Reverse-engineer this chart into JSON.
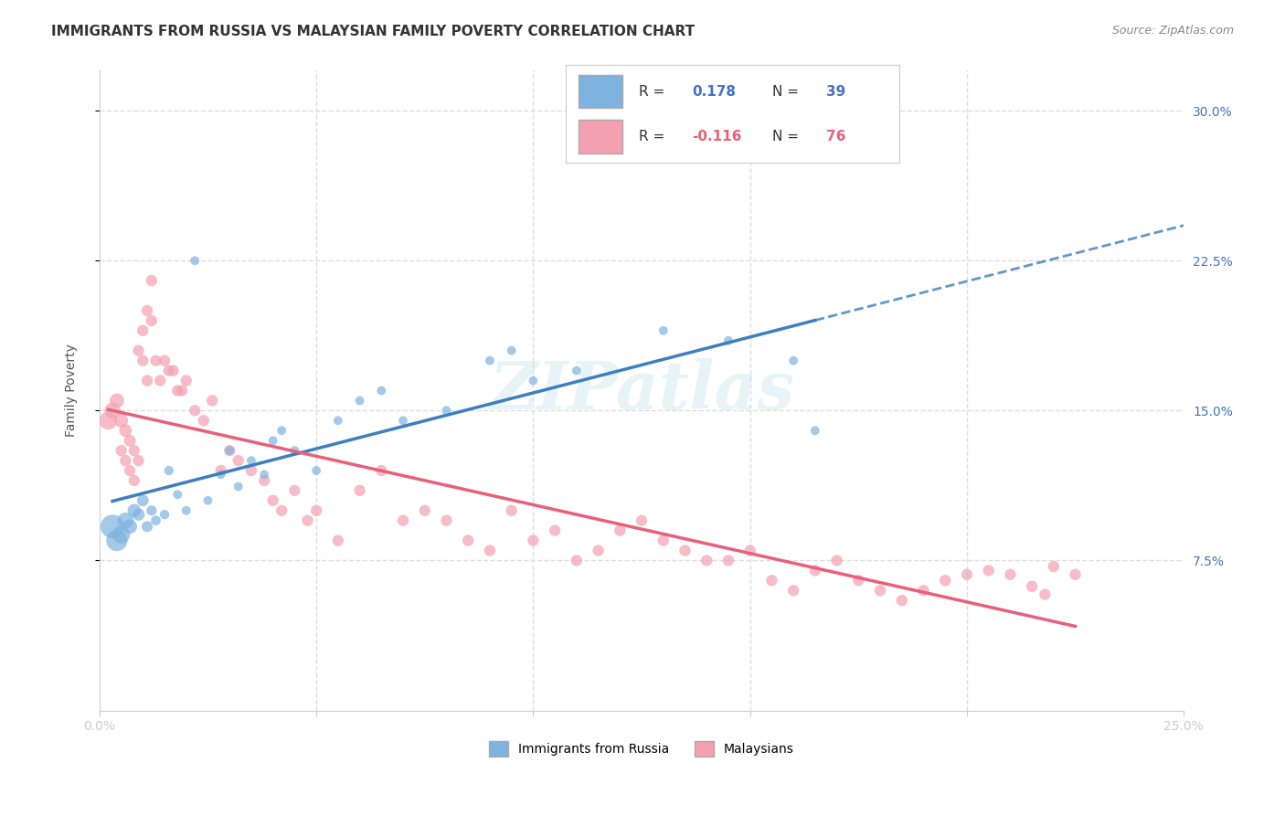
{
  "title": "IMMIGRANTS FROM RUSSIA VS MALAYSIAN FAMILY POVERTY CORRELATION CHART",
  "source": "Source: ZipAtlas.com",
  "ylabel": "Family Poverty",
  "ytick_labels": [
    "7.5%",
    "15.0%",
    "22.5%",
    "30.0%"
  ],
  "ytick_values": [
    0.075,
    0.15,
    0.225,
    0.3
  ],
  "xlim": [
    0.0,
    0.25
  ],
  "ylim": [
    0.0,
    0.32
  ],
  "legend_russia_r": "0.178",
  "legend_russia_n": "39",
  "legend_malaysia_r": "-0.116",
  "legend_malaysia_n": "76",
  "blue_color": "#7EB3E0",
  "pink_color": "#F4A0B0",
  "blue_line_color": "#3D7FBF",
  "pink_line_color": "#E8607A",
  "blue_r_color": "#4472C4",
  "pink_r_color": "#E8607A",
  "background_color": "#FFFFFF",
  "title_fontsize": 11,
  "watermark": "ZIPatlas",
  "russia_x": [
    0.003,
    0.004,
    0.005,
    0.006,
    0.007,
    0.008,
    0.009,
    0.01,
    0.011,
    0.012,
    0.013,
    0.015,
    0.016,
    0.018,
    0.02,
    0.022,
    0.025,
    0.028,
    0.03,
    0.032,
    0.035,
    0.038,
    0.04,
    0.042,
    0.045,
    0.05,
    0.055,
    0.06,
    0.065,
    0.07,
    0.08,
    0.09,
    0.095,
    0.1,
    0.11,
    0.13,
    0.145,
    0.16,
    0.165
  ],
  "russia_y": [
    0.092,
    0.085,
    0.088,
    0.095,
    0.092,
    0.1,
    0.098,
    0.105,
    0.092,
    0.1,
    0.095,
    0.098,
    0.12,
    0.108,
    0.1,
    0.225,
    0.105,
    0.118,
    0.13,
    0.112,
    0.125,
    0.118,
    0.135,
    0.14,
    0.13,
    0.12,
    0.145,
    0.155,
    0.16,
    0.145,
    0.15,
    0.175,
    0.18,
    0.165,
    0.17,
    0.19,
    0.185,
    0.175,
    0.14
  ],
  "russia_size": [
    350,
    280,
    200,
    160,
    130,
    110,
    95,
    85,
    75,
    65,
    60,
    55,
    55,
    50,
    50,
    50,
    50,
    50,
    50,
    50,
    50,
    50,
    50,
    50,
    50,
    50,
    50,
    50,
    50,
    50,
    50,
    50,
    50,
    50,
    50,
    50,
    50,
    50,
    50
  ],
  "malaysia_x": [
    0.002,
    0.003,
    0.004,
    0.005,
    0.005,
    0.006,
    0.006,
    0.007,
    0.007,
    0.008,
    0.008,
    0.009,
    0.009,
    0.01,
    0.01,
    0.011,
    0.011,
    0.012,
    0.012,
    0.013,
    0.014,
    0.015,
    0.016,
    0.017,
    0.018,
    0.019,
    0.02,
    0.022,
    0.024,
    0.026,
    0.028,
    0.03,
    0.032,
    0.035,
    0.038,
    0.04,
    0.042,
    0.045,
    0.048,
    0.05,
    0.055,
    0.06,
    0.065,
    0.07,
    0.075,
    0.08,
    0.085,
    0.09,
    0.095,
    0.1,
    0.105,
    0.11,
    0.115,
    0.12,
    0.125,
    0.13,
    0.135,
    0.14,
    0.145,
    0.15,
    0.155,
    0.16,
    0.165,
    0.17,
    0.175,
    0.18,
    0.185,
    0.19,
    0.195,
    0.2,
    0.205,
    0.21,
    0.215,
    0.218,
    0.22,
    0.225
  ],
  "malaysia_y": [
    0.145,
    0.15,
    0.155,
    0.13,
    0.145,
    0.125,
    0.14,
    0.12,
    0.135,
    0.115,
    0.13,
    0.125,
    0.18,
    0.175,
    0.19,
    0.165,
    0.2,
    0.195,
    0.215,
    0.175,
    0.165,
    0.175,
    0.17,
    0.17,
    0.16,
    0.16,
    0.165,
    0.15,
    0.145,
    0.155,
    0.12,
    0.13,
    0.125,
    0.12,
    0.115,
    0.105,
    0.1,
    0.11,
    0.095,
    0.1,
    0.085,
    0.11,
    0.12,
    0.095,
    0.1,
    0.095,
    0.085,
    0.08,
    0.1,
    0.085,
    0.09,
    0.075,
    0.08,
    0.09,
    0.095,
    0.085,
    0.08,
    0.075,
    0.075,
    0.08,
    0.065,
    0.06,
    0.07,
    0.075,
    0.065,
    0.06,
    0.055,
    0.06,
    0.065,
    0.068,
    0.07,
    0.068,
    0.062,
    0.058,
    0.072,
    0.068
  ],
  "malaysia_size": [
    200,
    160,
    130,
    80,
    120,
    80,
    100,
    80,
    90,
    80,
    80,
    80,
    80,
    80,
    80,
    80,
    80,
    80,
    80,
    80,
    80,
    80,
    80,
    80,
    80,
    80,
    80,
    80,
    80,
    80,
    80,
    80,
    80,
    80,
    80,
    80,
    80,
    80,
    80,
    80,
    80,
    80,
    80,
    80,
    80,
    80,
    80,
    80,
    80,
    80,
    80,
    80,
    80,
    80,
    80,
    80,
    80,
    80,
    80,
    80,
    80,
    80,
    80,
    80,
    80,
    80,
    80,
    80,
    80,
    80,
    80,
    80,
    80,
    80,
    80,
    80
  ],
  "grid_color": "#DDDDDD"
}
